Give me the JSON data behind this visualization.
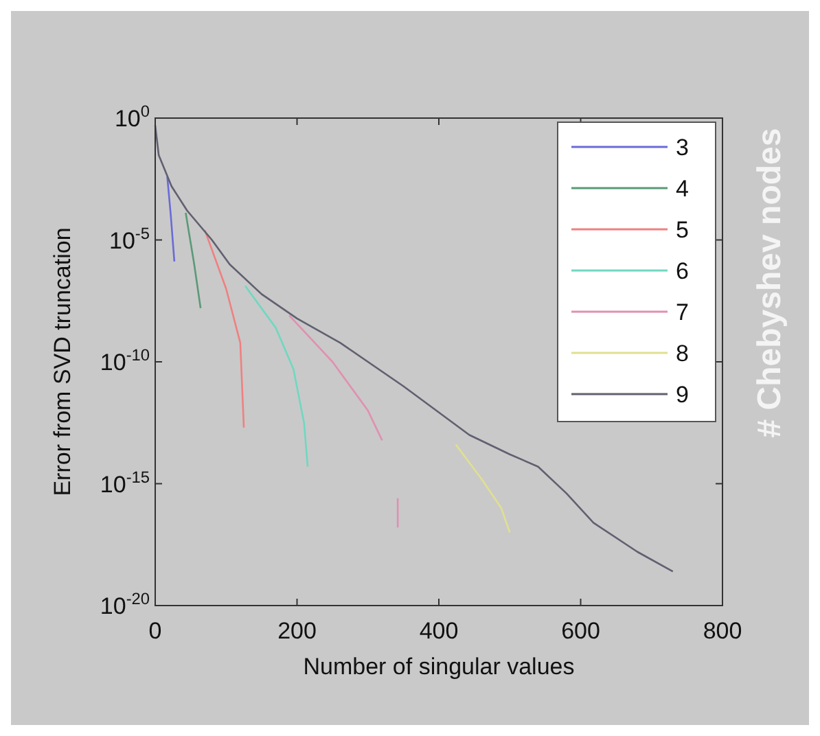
{
  "chart_data": {
    "type": "line",
    "xlabel": "Number of singular values",
    "ylabel": "Error from SVD truncation",
    "legend_title": "# Chebyshev nodes",
    "log": "y",
    "legend": "top right",
    "grid": false,
    "xlim": [
      0,
      800
    ],
    "xticks": [
      0,
      200,
      400,
      600,
      800
    ],
    "ylim": [
      1e-20,
      1
    ],
    "yticks": [
      {
        "value": 1e-20,
        "label": "10$^{-20}$"
      },
      {
        "value": 1e-15,
        "label": "10$^{-15}$"
      },
      {
        "value": 1e-10,
        "label": "10$^{-10}$"
      },
      {
        "value": 1e-05,
        "label": "10$^{-5}$"
      },
      {
        "value": 1,
        "label": "10$^{0}$"
      }
    ],
    "series": [
      {
        "name": "3",
        "color": "#6a6ad8",
        "x": [
          17,
          22,
          27
        ],
        "values": [
          0.004,
          0.0001,
          1.3e-06
        ]
      },
      {
        "name": "4",
        "color": "#5a9a78",
        "x": [
          43,
          55,
          64
        ],
        "values": [
          0.00013,
          1e-06,
          1.6e-08
        ]
      },
      {
        "name": "5",
        "color": "#f08080",
        "x": [
          70,
          100,
          120,
          125
        ],
        "values": [
          2.5e-05,
          1e-07,
          6e-10,
          2e-13
        ]
      },
      {
        "name": "6",
        "color": "#70d8c0",
        "x": [
          127,
          170,
          195,
          210,
          215
        ],
        "values": [
          1.3e-07,
          2.5e-09,
          5e-11,
          3e-13,
          5e-15
        ]
      },
      {
        "name": "7",
        "color": "#e090b0",
        "x": [
          189,
          250,
          300,
          320,
          331,
          342,
          342
        ],
        "values": [
          8e-09,
          1e-10,
          1e-12,
          6e-14,
          null,
          2.5e-16,
          1.6e-17
        ]
      },
      {
        "name": "8",
        "color": "#e0e090",
        "x": [
          424,
          460,
          488,
          500
        ],
        "values": [
          4e-14,
          1.6e-15,
          1e-16,
          1e-17
        ]
      },
      {
        "name": "9",
        "color": "#606070",
        "x": [
          0,
          5,
          23,
          45,
          80,
          105,
          150,
          200,
          261,
          350,
          443,
          500,
          540,
          580,
          618,
          680,
          730
        ],
        "values": [
          0.5,
          0.03,
          0.0016,
          0.00016,
          1e-05,
          1e-06,
          6e-08,
          6e-09,
          6e-10,
          1e-11,
          1e-13,
          1.6e-14,
          5e-15,
          4e-16,
          2.5e-17,
          1.6e-18,
          2.5e-19
        ]
      }
    ]
  }
}
